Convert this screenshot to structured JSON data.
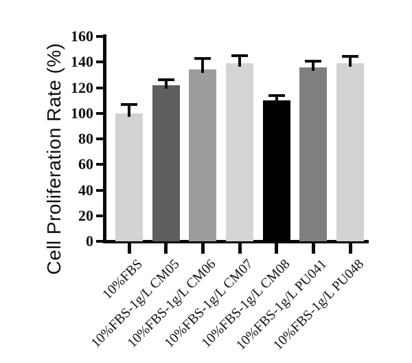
{
  "chart_data": {
    "type": "bar",
    "title": "",
    "xlabel": "",
    "ylabel": "Cell Proliferation Rate (%)",
    "ylim": [
      0,
      160
    ],
    "yticks": [
      0,
      20,
      40,
      60,
      80,
      100,
      120,
      140,
      160
    ],
    "grid": false,
    "legend": null,
    "categories": [
      "10%FBS",
      "10%FBS-1g/L CM05",
      "10%FBS-1g/L CM06",
      "10%FBS-1g/L CM07",
      "10%FBS-1g/L CM08",
      "10%FBS-1g/L PU041",
      "10%FBS-1g/L PU048"
    ],
    "values": [
      100,
      122,
      134,
      139,
      110,
      136,
      139
    ],
    "errors_plus": [
      7,
      4,
      9,
      6,
      4,
      4.5,
      5.5
    ],
    "bar_colors": [
      "#d2d2d2",
      "#5e5e5e",
      "#9c9c9e",
      "#d5d5d7",
      "#000000",
      "#7f7f7f",
      "#d2d2d2"
    ],
    "axis_color": "#0a0a0a",
    "error_bar_color": "#0a0a0a",
    "background_color": "#ffffff"
  }
}
